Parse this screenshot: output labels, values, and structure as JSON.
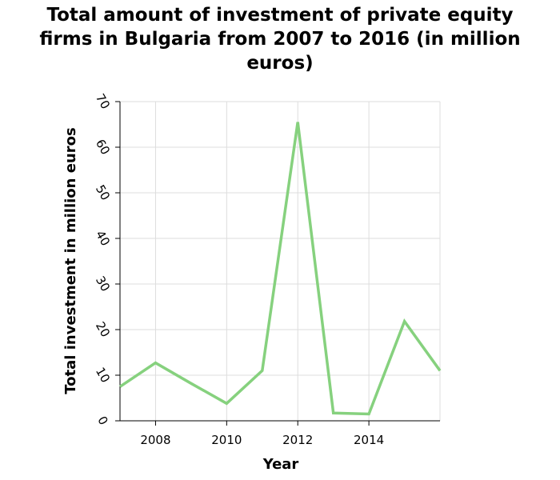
{
  "chart_data": {
    "type": "line",
    "title": "Total amount of investment of private equity firms in Bulgaria from 2007 to 2016 (in million euros)",
    "title_lines": [
      "Total amount of investment of private equity",
      "firms in Bulgaria from 2007 to 2016 (in million",
      "euros)"
    ],
    "xlabel": "Year",
    "ylabel": "Total investment in million euros",
    "x": [
      2007,
      2008,
      2009,
      2010,
      2011,
      2012,
      2013,
      2014,
      2015,
      2016
    ],
    "series": [
      {
        "values": [
          7.5,
          12.7,
          8.2,
          3.8,
          11.0,
          65.5,
          1.7,
          1.5,
          21.8,
          11.0
        ]
      }
    ],
    "xlim": [
      2007,
      2016
    ],
    "ylim": [
      0,
      70
    ],
    "xticks": [
      2008,
      2010,
      2012,
      2014
    ],
    "yticks": [
      0,
      10,
      20,
      30,
      40,
      50,
      60,
      70
    ],
    "line_color": "#86d17e",
    "grid": true,
    "grid_color": "#dddddd"
  }
}
